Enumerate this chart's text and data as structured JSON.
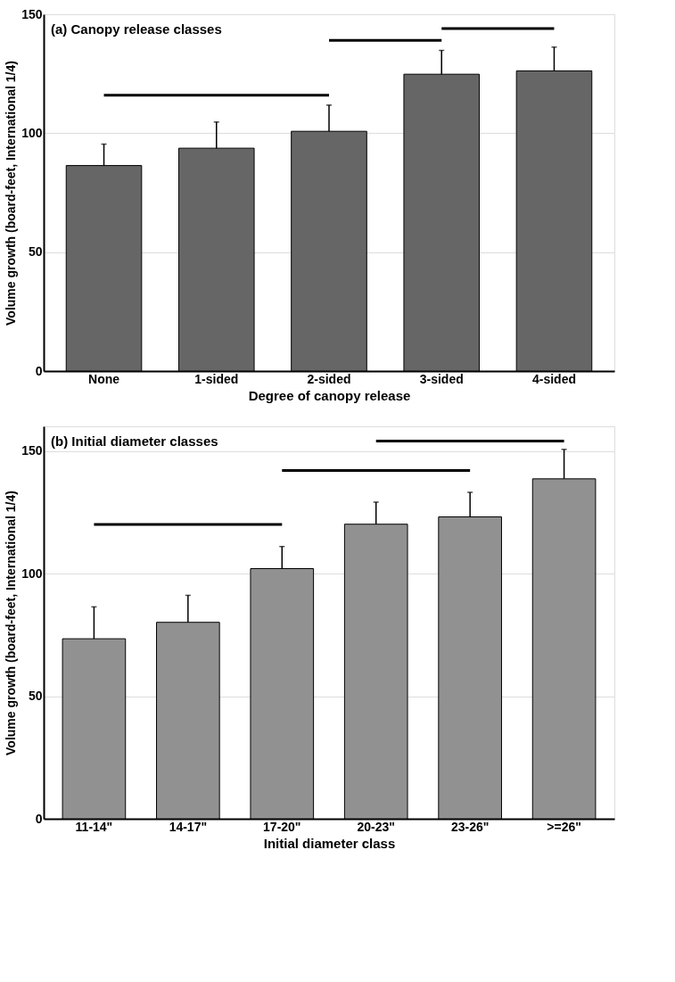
{
  "chart_data": [
    {
      "type": "bar",
      "title": "(a) Canopy release classes",
      "xlabel": "Degree of canopy release",
      "ylabel": "Volume growth (board-feet, International 1/4)",
      "categories": [
        "None",
        "1-sided",
        "2-sided",
        "3-sided",
        "4-sided"
      ],
      "ylim": [
        0,
        150
      ],
      "yticks": [
        0,
        50,
        100,
        150
      ],
      "grid": "y",
      "series": [
        {
          "color": "#666666",
          "values": [
            86.4,
            93.7,
            100.8,
            124.8,
            126.2
          ],
          "errors": [
            [
              86.4,
              95.4
            ],
            [
              93.7,
              104.7
            ],
            [
              100.8,
              111.8
            ],
            [
              124.8,
              134.8
            ],
            [
              126.2,
              136.2
            ]
          ]
        },
        {
          "type": "line",
          "color": "#000000",
          "values": [
            116,
            116,
            116,
            null,
            null
          ]
        },
        {
          "type": "line",
          "color": "#000000",
          "values": [
            null,
            null,
            139,
            139,
            null
          ]
        },
        {
          "type": "line",
          "color": "#000000",
          "values": [
            null,
            null,
            null,
            144,
            144
          ]
        }
      ]
    },
    {
      "type": "bar",
      "title": "(b) Initial diameter classes",
      "xlabel": "Initial diameter class",
      "ylabel": "Volume growth (board-feet, International 1/4)",
      "categories": [
        "11-14\"",
        "14-17\"",
        "17-20\"",
        "20-23\"",
        "23-26\"",
        ">=26\""
      ],
      "ylim": [
        0,
        160
      ],
      "yticks": [
        0,
        50,
        100,
        150
      ],
      "grid": "y",
      "series": [
        {
          "color": "#919191",
          "values": [
            73.4,
            80.1,
            102.0,
            120.1,
            123.1,
            138.6
          ],
          "errors": [
            [
              73.4,
              86.4
            ],
            [
              80.1,
              91.1
            ],
            [
              102.0,
              111.0
            ],
            [
              120.1,
              129.1
            ],
            [
              123.1,
              133.1
            ],
            [
              138.6,
              150.6
            ]
          ]
        },
        {
          "type": "line",
          "color": "#000000",
          "values": [
            120,
            120,
            120,
            null,
            null,
            null
          ]
        },
        {
          "type": "line",
          "color": "#000000",
          "values": [
            null,
            null,
            142,
            142,
            142,
            null
          ]
        },
        {
          "type": "line",
          "color": "#000000",
          "values": [
            null,
            null,
            null,
            154,
            154,
            154
          ]
        }
      ]
    }
  ]
}
